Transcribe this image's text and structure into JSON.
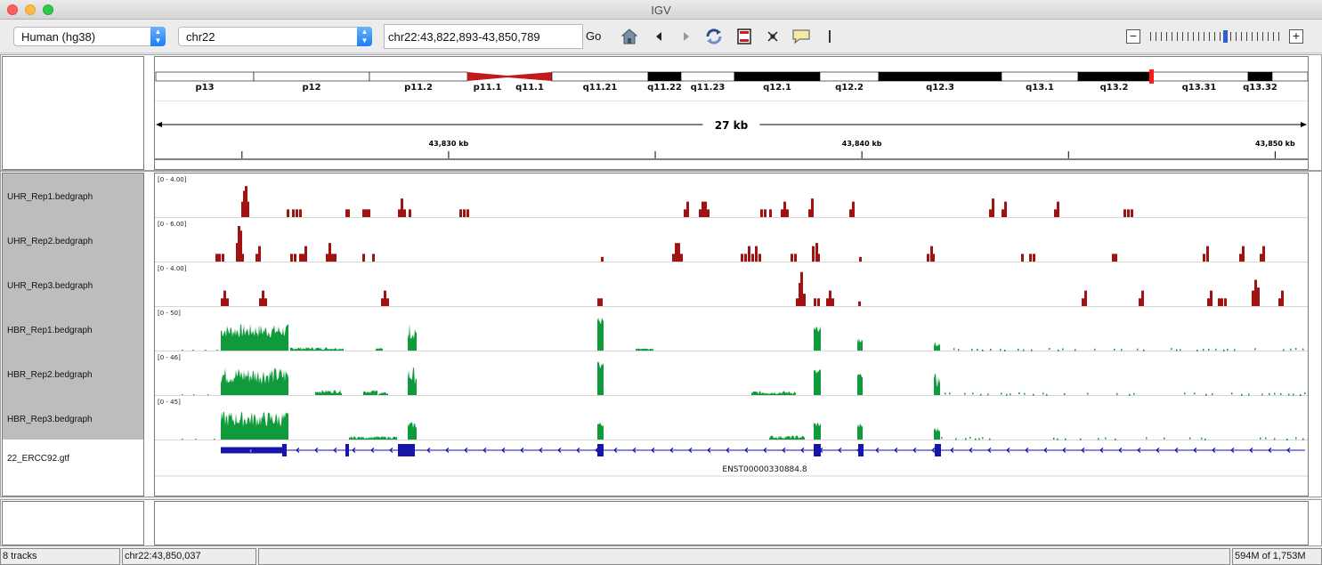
{
  "window": {
    "title": "IGV"
  },
  "toolbar": {
    "genome": "Human (hg38)",
    "chromosome": "chr22",
    "locus": "chr22:43,822,893-43,850,789",
    "go_label": "Go",
    "zoom_minus": "−",
    "zoom_plus": "+",
    "zoom_level_index": 14,
    "zoom_level_count": 25
  },
  "ideogram": {
    "bands": [
      {
        "name": "p13",
        "start": 0,
        "end": 110,
        "stain": "gneg"
      },
      {
        "name": "p12",
        "start": 110,
        "end": 240,
        "stain": "gneg"
      },
      {
        "name": "p11.2",
        "start": 240,
        "end": 350,
        "stain": "gneg"
      },
      {
        "name": "p11.1",
        "start": 350,
        "end": 395,
        "stain": "acen"
      },
      {
        "name": "q11.1",
        "start": 395,
        "end": 445,
        "stain": "acen"
      },
      {
        "name": "q11.21",
        "start": 445,
        "end": 553,
        "stain": "gneg"
      },
      {
        "name": "q11.22",
        "start": 553,
        "end": 590,
        "stain": "gpos"
      },
      {
        "name": "q11.23",
        "start": 590,
        "end": 650,
        "stain": "gneg"
      },
      {
        "name": "q12.1",
        "start": 650,
        "end": 746,
        "stain": "gpos"
      },
      {
        "name": "q12.2",
        "start": 746,
        "end": 812,
        "stain": "gneg"
      },
      {
        "name": "q12.3",
        "start": 812,
        "end": 950,
        "stain": "gpos"
      },
      {
        "name": "q13.1",
        "start": 950,
        "end": 1036,
        "stain": "gneg"
      },
      {
        "name": "q13.2",
        "start": 1036,
        "end": 1117,
        "stain": "gpos"
      },
      {
        "name": "q13.31",
        "start": 1117,
        "end": 1227,
        "stain": "gneg"
      },
      {
        "name": "q13.32",
        "start": 1227,
        "end": 1254,
        "stain": "gpos"
      },
      {
        "name": "",
        "start": 1254,
        "end": 1294,
        "stain": "gneg"
      }
    ],
    "current_view_pos": 1119
  },
  "ruler": {
    "span_label": "27 kb",
    "ticks": [
      {
        "label": "43,830 kb",
        "pos": 43830000
      },
      {
        "label": "43,840 kb",
        "pos": 43840000
      },
      {
        "label": "43,850 kb",
        "pos": 43850000
      }
    ],
    "minor_ticks": [
      43825000,
      43835000,
      43845000
    ],
    "view_start": 43822893,
    "view_end": 43850789
  },
  "tracks": [
    {
      "name": "UHR_Rep1.bedgraph",
      "range": "[0 - 4.00]",
      "color": "#a11313",
      "kind": "sparse",
      "bars": [
        [
          97,
          1
        ],
        [
          99,
          1.7
        ],
        [
          101,
          2
        ],
        [
          103,
          1
        ],
        [
          148,
          0.5
        ],
        [
          154,
          0.5
        ],
        [
          158,
          0.5
        ],
        [
          162,
          0.5
        ],
        [
          214,
          0.5
        ],
        [
          216,
          0.5
        ],
        [
          233,
          0.5
        ],
        [
          236,
          0.5
        ],
        [
          239,
          0.5
        ],
        [
          273,
          0.5
        ],
        [
          276,
          1.2
        ],
        [
          279,
          0.5
        ],
        [
          285,
          0.5
        ],
        [
          342,
          0.5
        ],
        [
          346,
          0.5
        ],
        [
          350,
          0.5
        ],
        [
          594,
          0.5
        ],
        [
          597,
          1
        ],
        [
          611,
          0.5
        ],
        [
          614,
          1
        ],
        [
          617,
          1
        ],
        [
          620,
          0.5
        ],
        [
          680,
          0.5
        ],
        [
          684,
          0.5
        ],
        [
          690,
          0.5
        ],
        [
          703,
          0.5
        ],
        [
          706,
          1
        ],
        [
          709,
          0.5
        ],
        [
          734,
          0.5
        ],
        [
          737,
          1.2
        ],
        [
          780,
          0.5
        ],
        [
          783,
          1
        ],
        [
          937,
          0.5
        ],
        [
          940,
          1.2
        ],
        [
          951,
          0.5
        ],
        [
          954,
          1
        ],
        [
          1010,
          0.5
        ],
        [
          1013,
          1
        ],
        [
          1088,
          0.5
        ],
        [
          1092,
          0.5
        ],
        [
          1096,
          0.5
        ]
      ]
    },
    {
      "name": "UHR_Rep2.bedgraph",
      "range": "[0 - 6.00]",
      "color": "#a11313",
      "kind": "sparse",
      "bars": [
        [
          68,
          0.5
        ],
        [
          71,
          0.5
        ],
        [
          75,
          0.5
        ],
        [
          91,
          1.2
        ],
        [
          93,
          2.3
        ],
        [
          95,
          2
        ],
        [
          97,
          0.5
        ],
        [
          113,
          0.5
        ],
        [
          116,
          1
        ],
        [
          152,
          0.5
        ],
        [
          156,
          0.5
        ],
        [
          162,
          0.5
        ],
        [
          165,
          0.5
        ],
        [
          168,
          1
        ],
        [
          192,
          0.5
        ],
        [
          195,
          1.2
        ],
        [
          198,
          0.5
        ],
        [
          201,
          0.5
        ],
        [
          233,
          0.5
        ],
        [
          244,
          0.5
        ],
        [
          501,
          0.3
        ],
        [
          581,
          0.5
        ],
        [
          584,
          1.2
        ],
        [
          587,
          1.2
        ],
        [
          590,
          0.5
        ],
        [
          658,
          0.5
        ],
        [
          662,
          0.5
        ],
        [
          666,
          1
        ],
        [
          670,
          0.5
        ],
        [
          674,
          1
        ],
        [
          678,
          0.5
        ],
        [
          714,
          0.5
        ],
        [
          718,
          0.5
        ],
        [
          738,
          1
        ],
        [
          742,
          1.2
        ],
        [
          744,
          0.5
        ],
        [
          791,
          0.3
        ],
        [
          867,
          0.5
        ],
        [
          871,
          1
        ],
        [
          873,
          0.5
        ],
        [
          973,
          0.5
        ],
        [
          982,
          0.5
        ],
        [
          986,
          0.5
        ],
        [
          1075,
          0.5
        ],
        [
          1078,
          0.5
        ],
        [
          1177,
          0.5
        ],
        [
          1181,
          1
        ],
        [
          1218,
          0.5
        ],
        [
          1221,
          1
        ],
        [
          1241,
          0.5
        ],
        [
          1244,
          1
        ]
      ]
    },
    {
      "name": "UHR_Rep3.bedgraph",
      "range": "[0 - 4.00]",
      "color": "#a11313",
      "kind": "sparse",
      "bars": [
        [
          74,
          0.5
        ],
        [
          77,
          1
        ],
        [
          80,
          0.5
        ],
        [
          117,
          0.5
        ],
        [
          120,
          1
        ],
        [
          123,
          0.5
        ],
        [
          254,
          0.5
        ],
        [
          257,
          1
        ],
        [
          260,
          0.5
        ],
        [
          497,
          0.5
        ],
        [
          500,
          0.5
        ],
        [
          720,
          0.5
        ],
        [
          723,
          1.5
        ],
        [
          725,
          2.2
        ],
        [
          728,
          0.8
        ],
        [
          740,
          0.5
        ],
        [
          744,
          0.5
        ],
        [
          754,
          0.5
        ],
        [
          757,
          1
        ],
        [
          760,
          0.5
        ],
        [
          790,
          0.3
        ],
        [
          1041,
          0.5
        ],
        [
          1044,
          1
        ],
        [
          1105,
          0.5
        ],
        [
          1108,
          1
        ],
        [
          1182,
          0.5
        ],
        [
          1185,
          1
        ],
        [
          1194,
          0.5
        ],
        [
          1197,
          0.5
        ],
        [
          1201,
          0.5
        ],
        [
          1232,
          1
        ],
        [
          1235,
          1.7
        ],
        [
          1238,
          1.2
        ],
        [
          1262,
          0.5
        ],
        [
          1265,
          1
        ]
      ]
    },
    {
      "name": "HBR_Rep1.bedgraph",
      "range": "[0 - 50]",
      "color": "#0f9a3b",
      "kind": "dense",
      "segments": [
        [
          74,
          150,
          0.35,
          0.75
        ],
        [
          152,
          212,
          0.02,
          0.1
        ],
        [
          248,
          256,
          0.02,
          0.08
        ],
        [
          284,
          294,
          0.3,
          0.8
        ],
        [
          497,
          504,
          0.7,
          0.95
        ],
        [
          540,
          560,
          0.02,
          0.06
        ],
        [
          740,
          748,
          0.5,
          0.7
        ],
        [
          789,
          795,
          0.2,
          0.4
        ],
        [
          875,
          882,
          0.1,
          0.25
        ]
      ],
      "sparse_from": [
        883,
        1292
      ]
    },
    {
      "name": "HBR_Rep2.bedgraph",
      "range": "[0 - 46]",
      "color": "#0f9a3b",
      "kind": "dense",
      "segments": [
        [
          74,
          150,
          0.3,
          0.8
        ],
        [
          180,
          210,
          0.05,
          0.15
        ],
        [
          234,
          250,
          0.05,
          0.15
        ],
        [
          251,
          262,
          0.02,
          0.08
        ],
        [
          284,
          294,
          0.3,
          0.8
        ],
        [
          497,
          504,
          0.7,
          0.95
        ],
        [
          670,
          720,
          0.02,
          0.12
        ],
        [
          740,
          748,
          0.5,
          0.75
        ],
        [
          789,
          795,
          0.5,
          0.6
        ],
        [
          875,
          882,
          0.2,
          0.6
        ]
      ],
      "sparse_from": [
        883,
        1292
      ]
    },
    {
      "name": "HBR_Rep3.bedgraph",
      "range": "[0 - 45]",
      "color": "#0f9a3b",
      "kind": "dense",
      "segments": [
        [
          74,
          150,
          0.35,
          0.8
        ],
        [
          218,
          272,
          0.02,
          0.1
        ],
        [
          284,
          294,
          0.3,
          0.5
        ],
        [
          497,
          504,
          0.35,
          0.5
        ],
        [
          690,
          730,
          0.02,
          0.12
        ],
        [
          740,
          748,
          0.35,
          0.5
        ],
        [
          789,
          795,
          0.3,
          0.45
        ],
        [
          875,
          882,
          0.2,
          0.35
        ]
      ],
      "sparse_from": [
        883,
        1292
      ]
    }
  ],
  "gene_track": {
    "name": "22_ERCC92.gtf",
    "transcript": "ENST00000330884.8",
    "color": "#1515a8",
    "utr": [
      74,
      148
    ],
    "exons": [
      [
        143,
        148
      ],
      [
        214,
        218
      ],
      [
        273,
        292
      ],
      [
        497,
        504
      ],
      [
        740,
        748
      ],
      [
        790,
        796
      ],
      [
        876,
        883
      ]
    ],
    "line": [
      74,
      1292
    ]
  },
  "status": {
    "tracks": "8 tracks",
    "position": "chr22:43,850,037",
    "message": "",
    "memory": "594M of 1,753M"
  }
}
